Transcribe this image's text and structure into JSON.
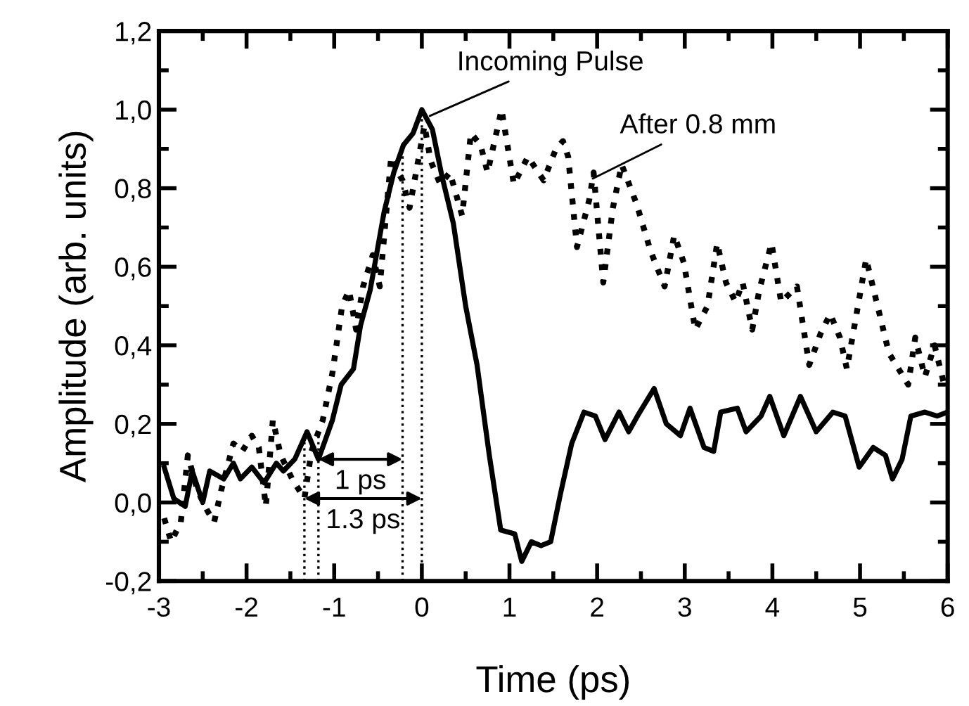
{
  "chart_data": {
    "type": "line",
    "xlabel": "Time (ps)",
    "ylabel": "Amplitude (arb. units)",
    "xlim": [
      -3,
      6
    ],
    "xticks": [
      -3,
      -2,
      -1,
      0,
      1,
      2,
      3,
      4,
      5,
      6
    ],
    "ylim": [
      -0.2,
      1.2
    ],
    "yticks": [
      {
        "value": -0.2,
        "label": "-0,2"
      },
      {
        "value": 0,
        "label": "0,0"
      },
      {
        "value": 0.2,
        "label": "0,2"
      },
      {
        "value": 0.4,
        "label": "0,4"
      },
      {
        "value": 0.6,
        "label": "0,6"
      },
      {
        "value": 0.8,
        "label": "0,8"
      },
      {
        "value": 1.0,
        "label": "1,0"
      },
      {
        "value": 1.2,
        "label": "1,2"
      }
    ],
    "grid": false,
    "legend": false,
    "series": [
      {
        "color": "#000000",
        "line_style": "solid",
        "x": [
          -2.94,
          -2.83,
          -2.7,
          -2.62,
          -2.5,
          -2.42,
          -2.26,
          -2.15,
          -2.07,
          -1.94,
          -1.8,
          -1.66,
          -1.58,
          -1.45,
          -1.31,
          -1.18,
          -1.02,
          -0.92,
          -0.78,
          -0.7,
          -0.59,
          -0.43,
          -0.32,
          -0.21,
          -0.1,
          0.0,
          0.12,
          0.23,
          0.36,
          0.5,
          0.63,
          0.77,
          0.9,
          1.06,
          1.14,
          1.25,
          1.36,
          1.47,
          1.58,
          1.71,
          1.85,
          1.98,
          2.09,
          2.25,
          2.36,
          2.46,
          2.65,
          2.79,
          2.95,
          3.06,
          3.22,
          3.33,
          3.41,
          3.6,
          3.7,
          3.87,
          3.97,
          4.13,
          4.32,
          4.5,
          4.69,
          4.83,
          4.99,
          5.15,
          5.29,
          5.37,
          5.48,
          5.58,
          5.74,
          5.88,
          6.0
        ],
        "values": [
          0.09,
          0.01,
          -0.01,
          0.08,
          0.0,
          0.08,
          0.06,
          0.1,
          0.06,
          0.09,
          0.05,
          0.1,
          0.08,
          0.11,
          0.18,
          0.11,
          0.21,
          0.3,
          0.34,
          0.45,
          0.54,
          0.74,
          0.84,
          0.91,
          0.94,
          1.0,
          0.95,
          0.83,
          0.71,
          0.5,
          0.35,
          0.12,
          -0.07,
          -0.08,
          -0.15,
          -0.1,
          -0.11,
          -0.1,
          0.02,
          0.15,
          0.23,
          0.22,
          0.16,
          0.23,
          0.18,
          0.22,
          0.29,
          0.2,
          0.17,
          0.24,
          0.14,
          0.13,
          0.23,
          0.24,
          0.18,
          0.22,
          0.27,
          0.17,
          0.27,
          0.18,
          0.23,
          0.22,
          0.09,
          0.14,
          0.12,
          0.06,
          0.11,
          0.22,
          0.23,
          0.22,
          0.23
        ]
      },
      {
        "color": "#000000",
        "line_style": "dotted",
        "x": [
          -2.94,
          -2.86,
          -2.75,
          -2.67,
          -2.56,
          -2.45,
          -2.37,
          -2.29,
          -2.15,
          -2.05,
          -1.94,
          -1.86,
          -1.78,
          -1.7,
          -1.61,
          -1.48,
          -1.34,
          -1.26,
          -1.13,
          -1.02,
          -0.91,
          -0.83,
          -0.75,
          -0.67,
          -0.56,
          -0.48,
          -0.35,
          -0.27,
          -0.22,
          -0.14,
          -0.05,
          0.03,
          0.1,
          0.21,
          0.32,
          0.46,
          0.56,
          0.67,
          0.75,
          0.91,
          1.05,
          1.21,
          1.39,
          1.53,
          1.61,
          1.67,
          1.77,
          1.91,
          1.96,
          2.07,
          2.18,
          2.28,
          2.45,
          2.61,
          2.77,
          2.88,
          2.99,
          3.12,
          3.26,
          3.37,
          3.47,
          3.58,
          3.66,
          3.77,
          3.85,
          3.99,
          4.1,
          4.28,
          4.42,
          4.55,
          4.66,
          4.77,
          4.85,
          5.07,
          5.2,
          5.33,
          5.55,
          5.63,
          5.74,
          5.85,
          5.96
        ],
        "values": [
          -0.04,
          -0.1,
          -0.05,
          0.12,
          0.03,
          -0.02,
          -0.05,
          0.03,
          0.15,
          0.13,
          0.17,
          0.14,
          -0.01,
          0.21,
          0.12,
          0.06,
          0.01,
          0.13,
          0.21,
          0.33,
          0.5,
          0.54,
          0.44,
          0.55,
          0.63,
          0.55,
          0.88,
          0.84,
          0.82,
          0.75,
          0.86,
          0.96,
          0.87,
          0.81,
          0.84,
          0.73,
          0.94,
          0.91,
          0.84,
          1.0,
          0.81,
          0.88,
          0.82,
          0.9,
          0.92,
          0.88,
          0.65,
          0.77,
          0.84,
          0.56,
          0.75,
          0.86,
          0.76,
          0.64,
          0.55,
          0.68,
          0.61,
          0.44,
          0.5,
          0.66,
          0.56,
          0.51,
          0.56,
          0.44,
          0.54,
          0.66,
          0.51,
          0.55,
          0.35,
          0.43,
          0.48,
          0.42,
          0.34,
          0.62,
          0.5,
          0.38,
          0.3,
          0.42,
          0.32,
          0.4,
          0.3
        ]
      }
    ],
    "ref_lines": [
      {
        "axis": "x",
        "value": -1.34,
        "line_style": "dotted"
      },
      {
        "axis": "x",
        "value": -1.18,
        "line_style": "dotted"
      },
      {
        "axis": "x",
        "value": -0.22,
        "line_style": "dotted"
      },
      {
        "axis": "x",
        "value": 0.0,
        "line_style": "dotted"
      }
    ],
    "annotations": [
      {
        "text": "Incoming Pulse",
        "x": 0.05,
        "y": 0.98
      },
      {
        "text": "After 0.8 mm",
        "x": 1.91,
        "y": 0.82
      },
      "1 ps",
      "1.3 ps"
    ]
  }
}
